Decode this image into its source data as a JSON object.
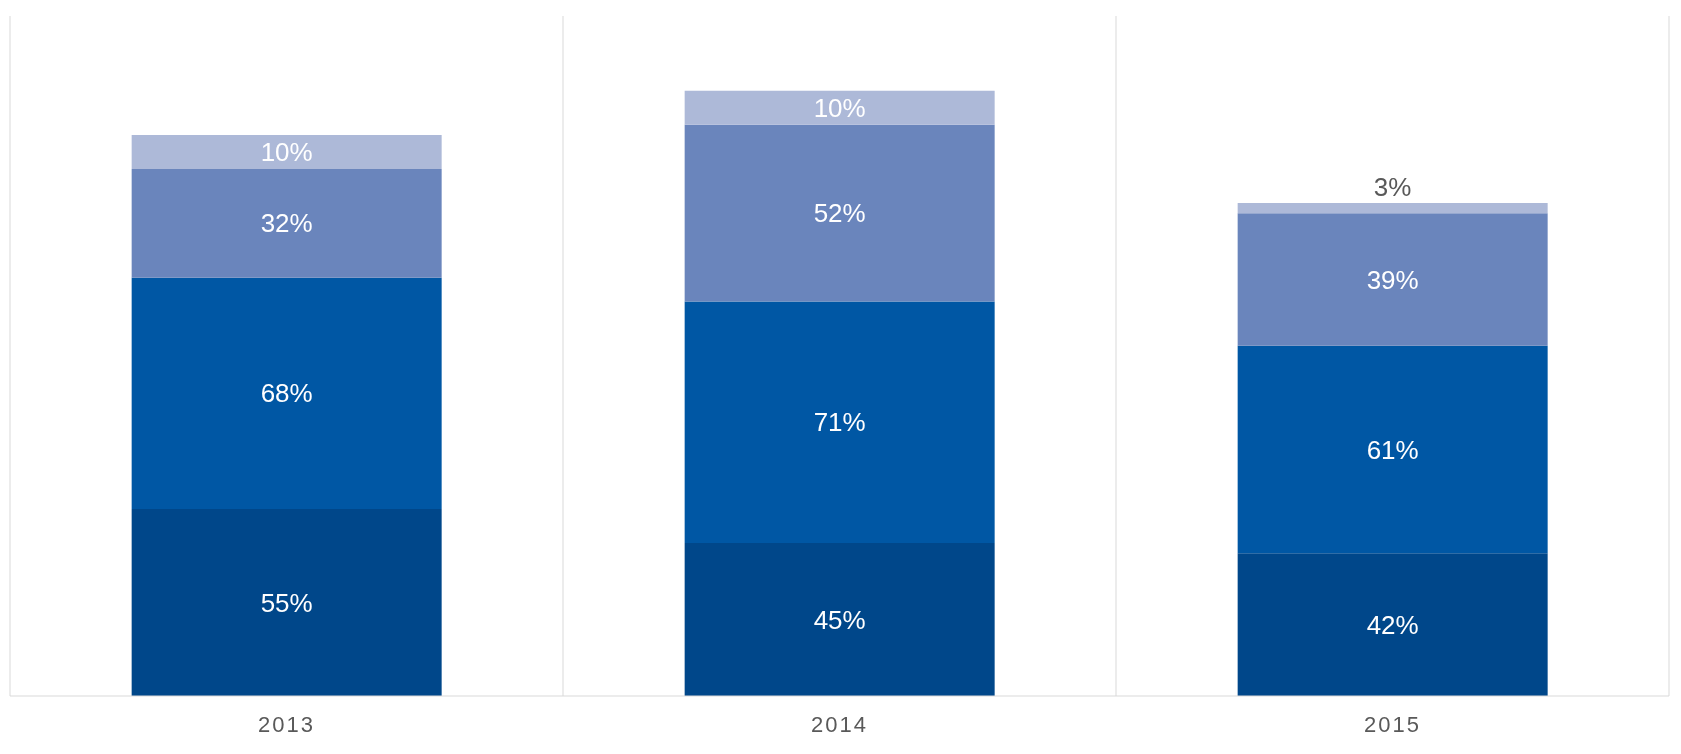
{
  "chart_data": {
    "type": "bar",
    "stacked": true,
    "categories": [
      "2013",
      "2014",
      "2015"
    ],
    "series": [
      {
        "color": "#00478a",
        "values": [
          55,
          45,
          42
        ],
        "value_labels": [
          "55%",
          "45%",
          "42%"
        ]
      },
      {
        "color": "#0057a4",
        "values": [
          68,
          71,
          61
        ],
        "value_labels": [
          "68%",
          "71%",
          "61%"
        ]
      },
      {
        "color": "#6a85bc",
        "values": [
          32,
          52,
          39
        ],
        "value_labels": [
          "32%",
          "52%",
          "39%"
        ]
      },
      {
        "color": "#adb9d8",
        "values": [
          10,
          10,
          3
        ],
        "value_labels": [
          "10%",
          "10%",
          "3%"
        ]
      }
    ],
    "ylim": [
      0,
      200
    ],
    "grid": "x",
    "legend": false
  }
}
